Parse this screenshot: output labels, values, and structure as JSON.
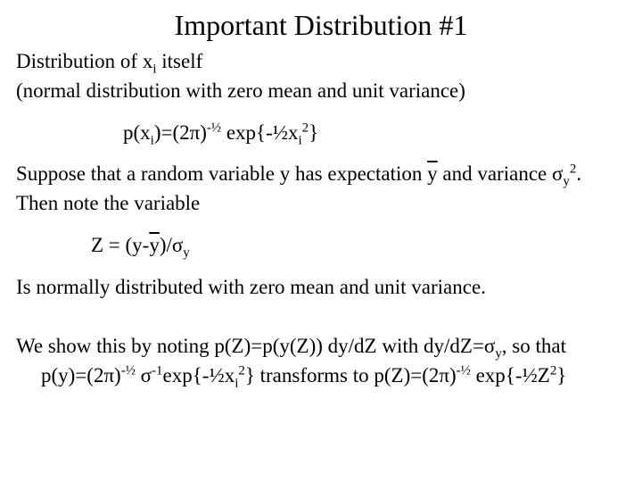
{
  "typography": {
    "title_fontsize": 32,
    "body_fontsize": 23,
    "font_family": "Times New Roman",
    "text_color": "#000000",
    "background_color": "#ffffff"
  },
  "title": "Important Distribution #1",
  "line1a": "Distribution of x",
  "line1a_sub": "i",
  "line1b": " itself",
  "line2": "(normal distribution with zero mean and unit variance)",
  "formula1_a": "p(x",
  "formula1_sub1": "i",
  "formula1_b": ")=(2π)",
  "formula1_sup1": "-½",
  "formula1_c": " exp{-½x",
  "formula1_sub2": "i",
  "formula1_sup2": "2",
  "formula1_d": "}",
  "line3a": "Suppose that a random variable y has expectation ",
  "line3_ybar": "y",
  "line3b": " and variance σ",
  "line3_sub": "y",
  "line3_sup": "2",
  "line3c": ".",
  "line4": "Then note the variable",
  "formula2_a": "Z = (y-",
  "formula2_ybar": "y",
  "formula2_b": ")/σ",
  "formula2_sub": "y",
  "line5": "Is normally distributed with zero mean and unit variance.",
  "line6a": "We show this by noting p(Z)=p(y(Z)) dy/dZ with dy/dZ=σ",
  "line6_sub": "y",
  "line6b": ", so that",
  "line7_a": "p(y)=(2π)",
  "line7_sup1": "-½",
  "line7_b": " σ",
  "line7_sup2": "-1",
  "line7_c": "exp{-½x",
  "line7_sub1": "i",
  "line7_sup3": "2",
  "line7_d": "} transforms to p(Z)=(2π)",
  "line7_sup4": "-½",
  "line7_e": " exp{-½Z",
  "line7_sup5": "2",
  "line7_f": "}"
}
